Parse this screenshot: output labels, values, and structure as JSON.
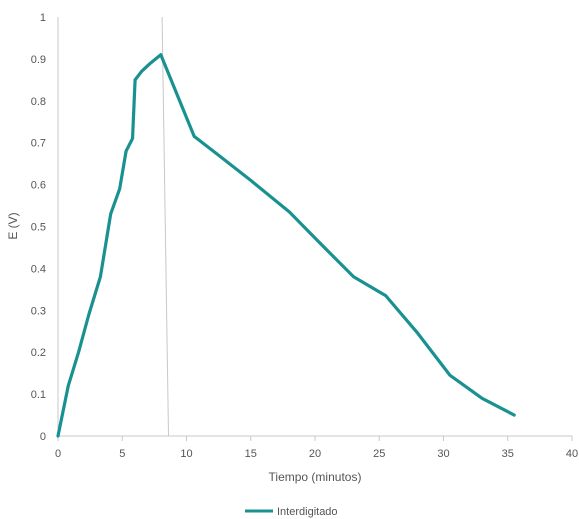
{
  "chart_data": {
    "type": "line",
    "title": "",
    "xlabel": "Tiempo (minutos)",
    "ylabel": "E (V)",
    "xlim": [
      0,
      40
    ],
    "ylim": [
      0,
      1
    ],
    "x_ticks": [
      "0",
      "5",
      "10",
      "15",
      "20",
      "25",
      "30",
      "35",
      "40"
    ],
    "y_ticks": [
      "0",
      "0.1",
      "0.2",
      "0.3",
      "0.4",
      "0.5",
      "0.6",
      "0.7",
      "0.8",
      "0.9",
      "1"
    ],
    "grid": false,
    "legend_position": "bottom",
    "series_color": "#1A9191",
    "reference_line_color": "#C8C8C8",
    "reference_line": {
      "top": {
        "x": 8.1,
        "y": 1.0
      },
      "bottom": {
        "x": 8.6,
        "y": 0.0
      }
    },
    "series": [
      {
        "name": "Interdigitado",
        "x": [
          0,
          0.8,
          1.6,
          2.4,
          3.3,
          4.1,
          4.8,
          5.3,
          5.8,
          6.0,
          6.5,
          7.2,
          8.0,
          10.6,
          12.5,
          15.0,
          18.0,
          20.4,
          23.0,
          25.5,
          28.0,
          30.5,
          33.0,
          35.5
        ],
        "y": [
          0,
          0.12,
          0.2,
          0.29,
          0.38,
          0.53,
          0.59,
          0.68,
          0.71,
          0.85,
          0.87,
          0.89,
          0.91,
          0.715,
          0.67,
          0.61,
          0.535,
          0.46,
          0.38,
          0.335,
          0.245,
          0.145,
          0.09,
          0.05
        ]
      }
    ]
  }
}
